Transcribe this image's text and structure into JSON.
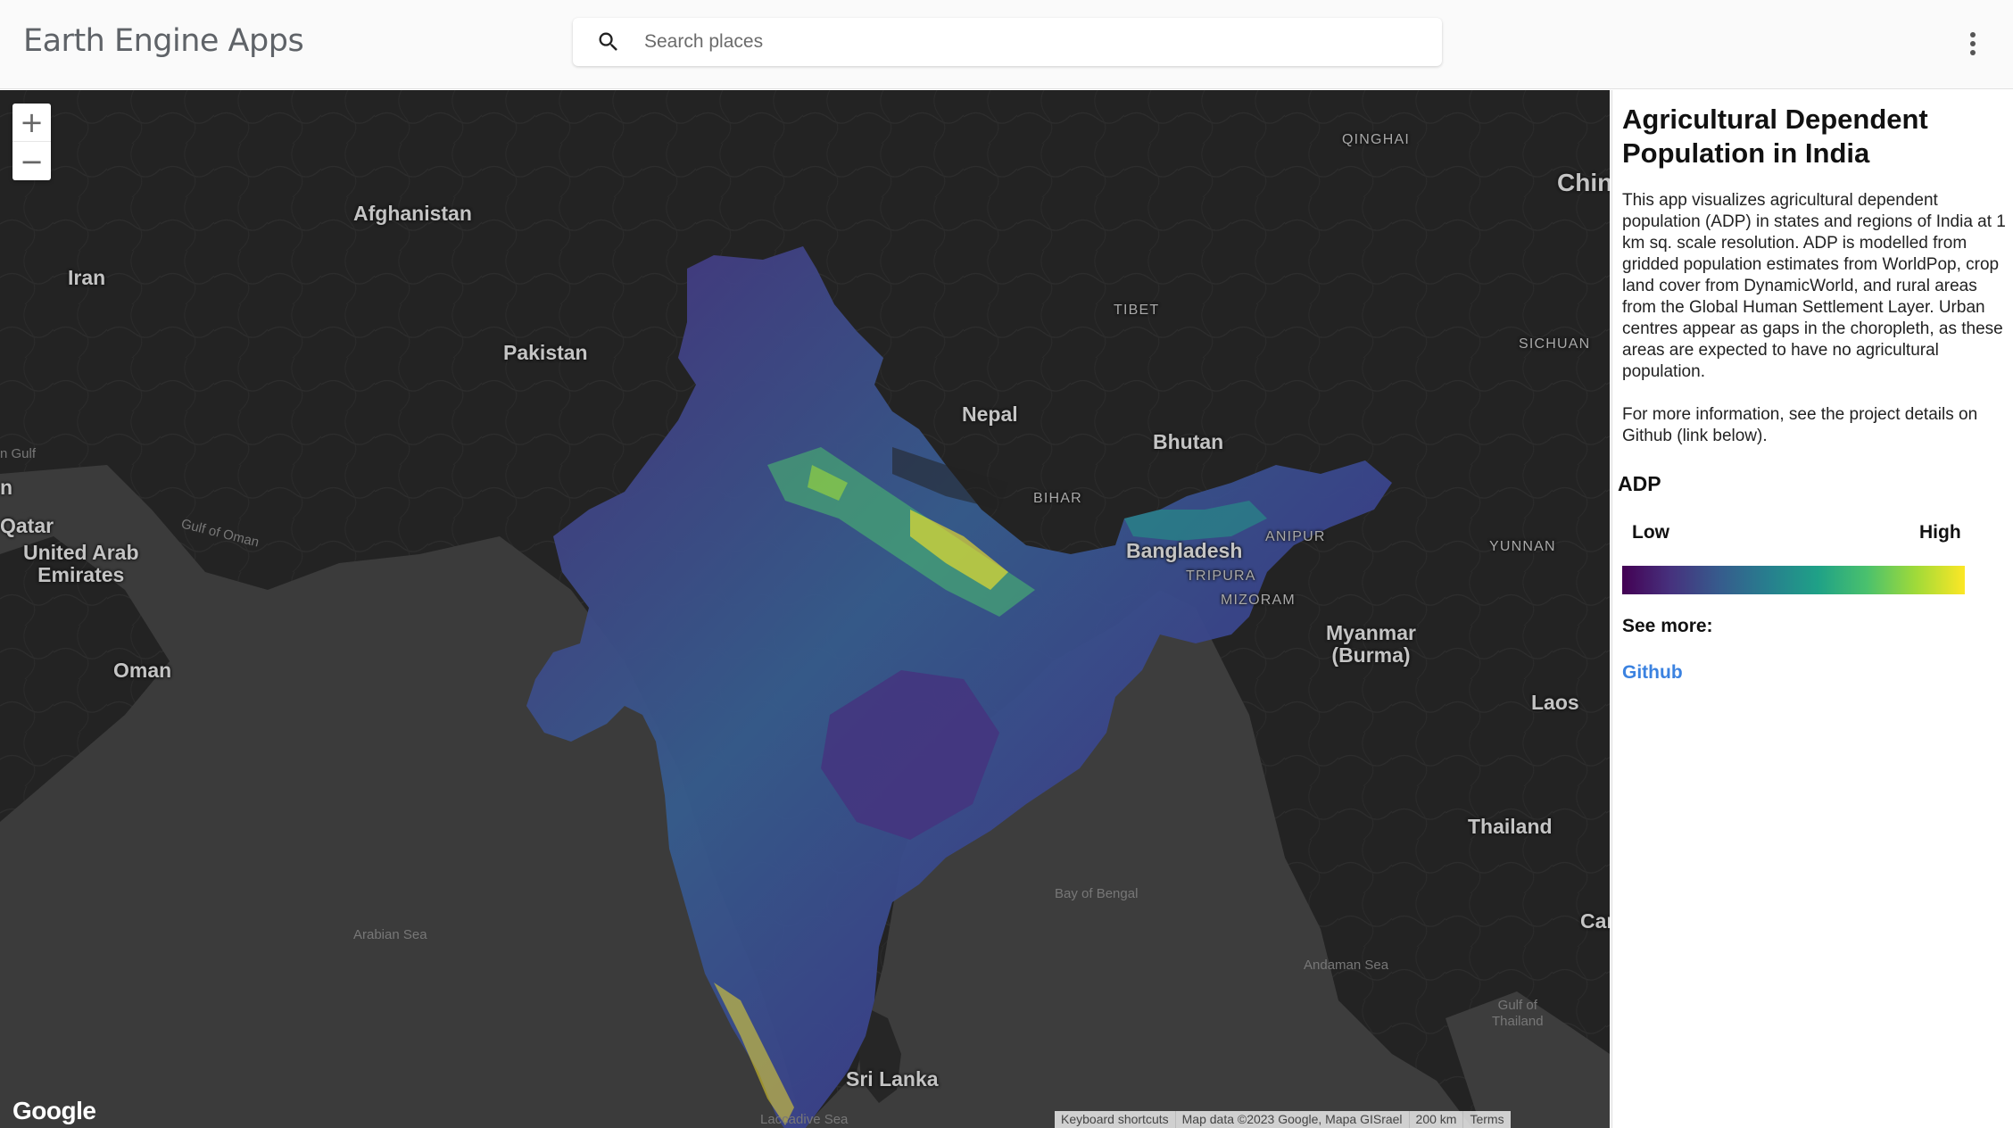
{
  "header": {
    "app_title": "Earth Engine Apps",
    "search_placeholder": "Search places",
    "menu_icon": "more-vert-icon"
  },
  "map": {
    "zoom_in": "+",
    "zoom_out": "−",
    "google_logo": "Google",
    "labels": {
      "afghanistan": "Afghanistan",
      "iran": "Iran",
      "pakistan": "Pakistan",
      "nepal": "Nepal",
      "bhutan": "Bhutan",
      "bangladesh": "Bangladesh",
      "china": "Chin",
      "qinghai": "QINGHAI",
      "tibet": "TIBET",
      "sichuan": "SICHUAN",
      "yunnan": "YUNNAN",
      "bihar": "BIHAR",
      "manipur": "ANIPUR",
      "tripura": "TRIPURA",
      "mizoram": "MIZORAM",
      "myanmar": "Myanmar\n(Burma)",
      "laos": "Laos",
      "thailand": "Thailand",
      "cambodia": "Car",
      "sri_lanka": "Sri Lanka",
      "oman": "Oman",
      "uae": "United Arab\nEmirates",
      "qatar": "Qatar",
      "gulf_of_oman": "Gulf of Oman",
      "arabian_sea": "Arabian Sea",
      "bay_of_bengal": "Bay of Bengal",
      "andaman_sea": "Andaman Sea",
      "gulf_of_thailand": "Gulf of\nThailand",
      "laccadive_sea": "Laccadive Sea",
      "gulf_partial": "n Gulf",
      "partial_n": "n"
    },
    "attribution": {
      "shortcuts": "Keyboard shortcuts",
      "map_data": "Map data ©2023 Google, Mapa GISrael",
      "scale": "200 km",
      "terms": "Terms"
    }
  },
  "panel": {
    "title": "Agricultural Dependent Population in India",
    "description": "This app visualizes agricultural dependent population (ADP) in states and regions of India at 1 km sq. scale resolution. ADP is modelled from gridded population estimates from WorldPop, crop land cover from DynamicWorld, and rural areas from the Global Human Settlement Layer. Urban centres appear as gaps in the choropleth, as these areas are expected to have no agricultural population.",
    "more_info": "For more information, see the project details on Github (link below).",
    "legend": {
      "title": "ADP",
      "low": "Low",
      "high": "High",
      "colors": [
        "#440154",
        "#46327e",
        "#365c8d",
        "#277f8e",
        "#1fa187",
        "#4ac16d",
        "#a0da39",
        "#fde725"
      ]
    },
    "see_more": "See more:",
    "link_label": "Github"
  }
}
